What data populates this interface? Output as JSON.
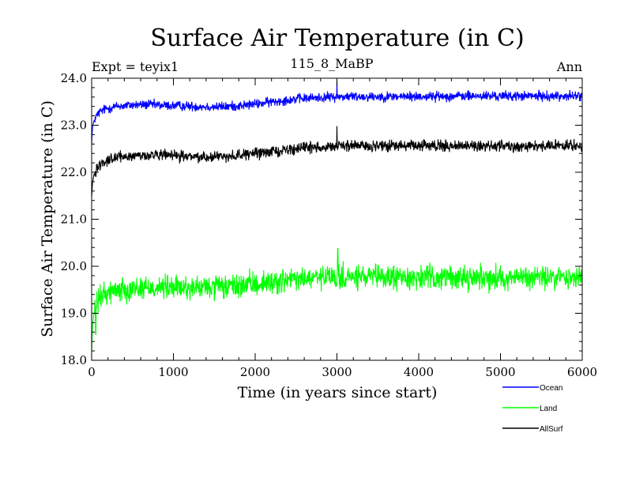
{
  "chart_data": {
    "type": "line",
    "title": "Surface Air Temperature (in C)",
    "subtitle_left": "Expt = teyix1",
    "subtitle_center": "115_8_MaBP",
    "subtitle_right": "Ann",
    "xlabel": "Time (in years since start)",
    "ylabel": "Surface Air Temperature (in C)",
    "xlim": [
      0,
      6000
    ],
    "ylim": [
      18.0,
      24.0
    ],
    "x_ticks": [
      0,
      1000,
      2000,
      3000,
      4000,
      5000,
      6000
    ],
    "x_tick_labels": [
      "0",
      "1000",
      "2000",
      "3000",
      "4000",
      "5000",
      "6000"
    ],
    "y_ticks": [
      18.0,
      19.0,
      20.0,
      21.0,
      22.0,
      23.0,
      24.0
    ],
    "y_tick_labels": [
      "18.0",
      "19.0",
      "20.0",
      "21.0",
      "22.0",
      "23.0",
      "24.0"
    ],
    "x_minor_step": 200,
    "y_minor_step": 0.2,
    "grid": false,
    "legend_position": "bottom-right, below plot",
    "series": [
      {
        "name": "Ocean",
        "color": "#0000ff",
        "noise": 0.09,
        "spikes": [
          [
            3000,
            23.95
          ]
        ],
        "x": [
          0,
          10,
          30,
          60,
          100,
          150,
          200,
          300,
          500,
          700,
          900,
          1100,
          1300,
          1500,
          1700,
          1900,
          2100,
          2300,
          2500,
          2700,
          2900,
          3100,
          3400,
          3700,
          4000,
          4500,
          5000,
          5500,
          6000
        ],
        "values": [
          22.6,
          22.95,
          23.1,
          23.2,
          23.28,
          23.33,
          23.36,
          23.4,
          23.43,
          23.44,
          23.42,
          23.41,
          23.4,
          23.39,
          23.4,
          23.43,
          23.47,
          23.52,
          23.56,
          23.58,
          23.6,
          23.61,
          23.61,
          23.61,
          23.61,
          23.62,
          23.62,
          23.62,
          23.62
        ]
      },
      {
        "name": "Land",
        "color": "#00ff00",
        "noise": 0.22,
        "spikes": [
          [
            3010,
            20.38
          ],
          [
            50,
            18.55
          ]
        ],
        "x": [
          0,
          10,
          30,
          60,
          100,
          150,
          200,
          300,
          500,
          700,
          900,
          1100,
          1300,
          1500,
          1700,
          1900,
          2100,
          2300,
          2500,
          2700,
          2900,
          3100,
          3400,
          3700,
          4000,
          4500,
          5000,
          5500,
          6000
        ],
        "values": [
          18.2,
          18.7,
          19.0,
          19.2,
          19.32,
          19.4,
          19.45,
          19.5,
          19.53,
          19.55,
          19.55,
          19.54,
          19.54,
          19.55,
          19.56,
          19.6,
          19.64,
          19.68,
          19.72,
          19.74,
          19.76,
          19.76,
          19.76,
          19.76,
          19.76,
          19.76,
          19.76,
          19.76,
          19.76
        ]
      },
      {
        "name": "AllSurf",
        "color": "#000000",
        "noise": 0.1,
        "spikes": [
          [
            3000,
            22.98
          ]
        ],
        "x": [
          0,
          10,
          30,
          60,
          100,
          150,
          200,
          300,
          500,
          700,
          900,
          1100,
          1300,
          1500,
          1700,
          1900,
          2100,
          2300,
          2500,
          2700,
          2900,
          3100,
          3400,
          3700,
          4000,
          4500,
          5000,
          5500,
          6000
        ],
        "values": [
          21.45,
          21.8,
          21.95,
          22.07,
          22.17,
          22.23,
          22.27,
          22.31,
          22.35,
          22.36,
          22.36,
          22.34,
          22.33,
          22.33,
          22.35,
          22.38,
          22.42,
          22.46,
          22.5,
          22.53,
          22.55,
          22.56,
          22.56,
          22.56,
          22.56,
          22.56,
          22.56,
          22.56,
          22.56
        ]
      }
    ]
  }
}
